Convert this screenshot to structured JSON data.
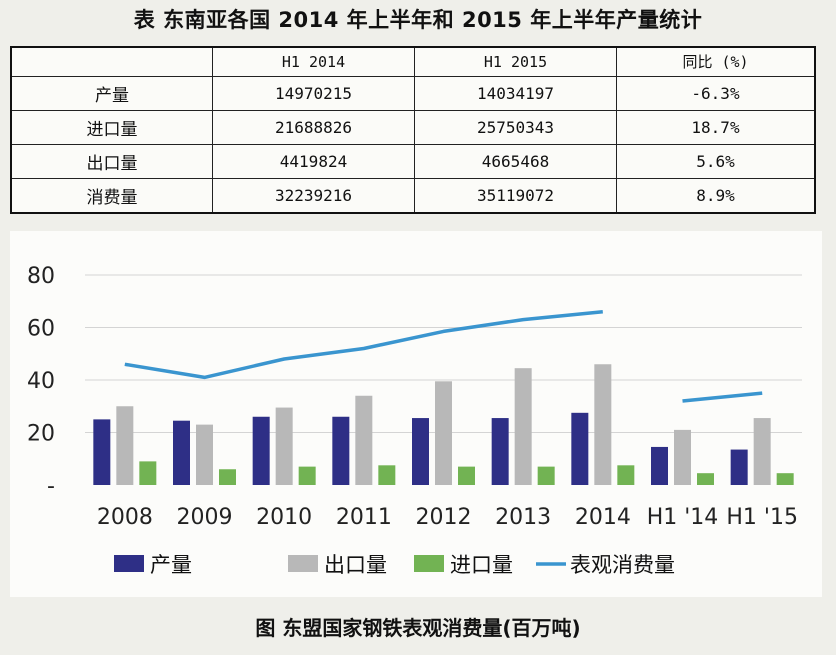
{
  "table": {
    "title": "表 东南亚各国 2014 年上半年和 2015 年上半年产量统计",
    "headers": [
      "",
      "H1 2014",
      "H1 2015",
      "同比 (%)"
    ],
    "rows": [
      {
        "label": "产量",
        "h1_2014": "14970215",
        "h1_2015": "14034197",
        "yoy": "-6.3%"
      },
      {
        "label": "进口量",
        "h1_2014": "21688826",
        "h1_2015": "25750343",
        "yoy": "18.7%"
      },
      {
        "label": "出口量",
        "h1_2014": "4419824",
        "h1_2015": "4665468",
        "yoy": "5.6%"
      },
      {
        "label": "消费量",
        "h1_2014": "32239216",
        "h1_2015": "35119072",
        "yoy": "8.9%"
      }
    ]
  },
  "caption": "图 东盟国家钢铁表观消费量(百万吨)",
  "chart_data": {
    "type": "bar",
    "categories": [
      "2008",
      "2009",
      "2010",
      "2011",
      "2012",
      "2013",
      "2014",
      "H1 '14",
      "H1 '15"
    ],
    "y_ticks": [
      "80",
      "60",
      "40",
      "20",
      "-"
    ],
    "ylim": [
      0,
      80
    ],
    "grid": true,
    "legend_position": "bottom",
    "series": [
      {
        "name": "产量",
        "type": "bar",
        "color": "#2e2f86",
        "values": [
          25,
          24.5,
          26,
          26,
          25.5,
          25.5,
          27.5,
          14.5,
          13.5
        ]
      },
      {
        "name": "出口量",
        "type": "bar",
        "color": "#b8b8b8",
        "values": [
          30,
          23,
          29.5,
          34,
          39.5,
          44.5,
          46,
          21,
          25.5
        ]
      },
      {
        "name": "进口量",
        "type": "bar",
        "color": "#72b353",
        "values": [
          9,
          6,
          7,
          7.5,
          7,
          7,
          7.5,
          4.5,
          4.5
        ]
      },
      {
        "name": "表观消费量",
        "type": "line",
        "color": "#3a95cf",
        "segments": [
          [
            0,
            6
          ],
          [
            7,
            8
          ]
        ],
        "values": [
          46,
          41,
          48,
          52,
          58.5,
          63,
          66,
          32,
          35
        ]
      }
    ]
  }
}
